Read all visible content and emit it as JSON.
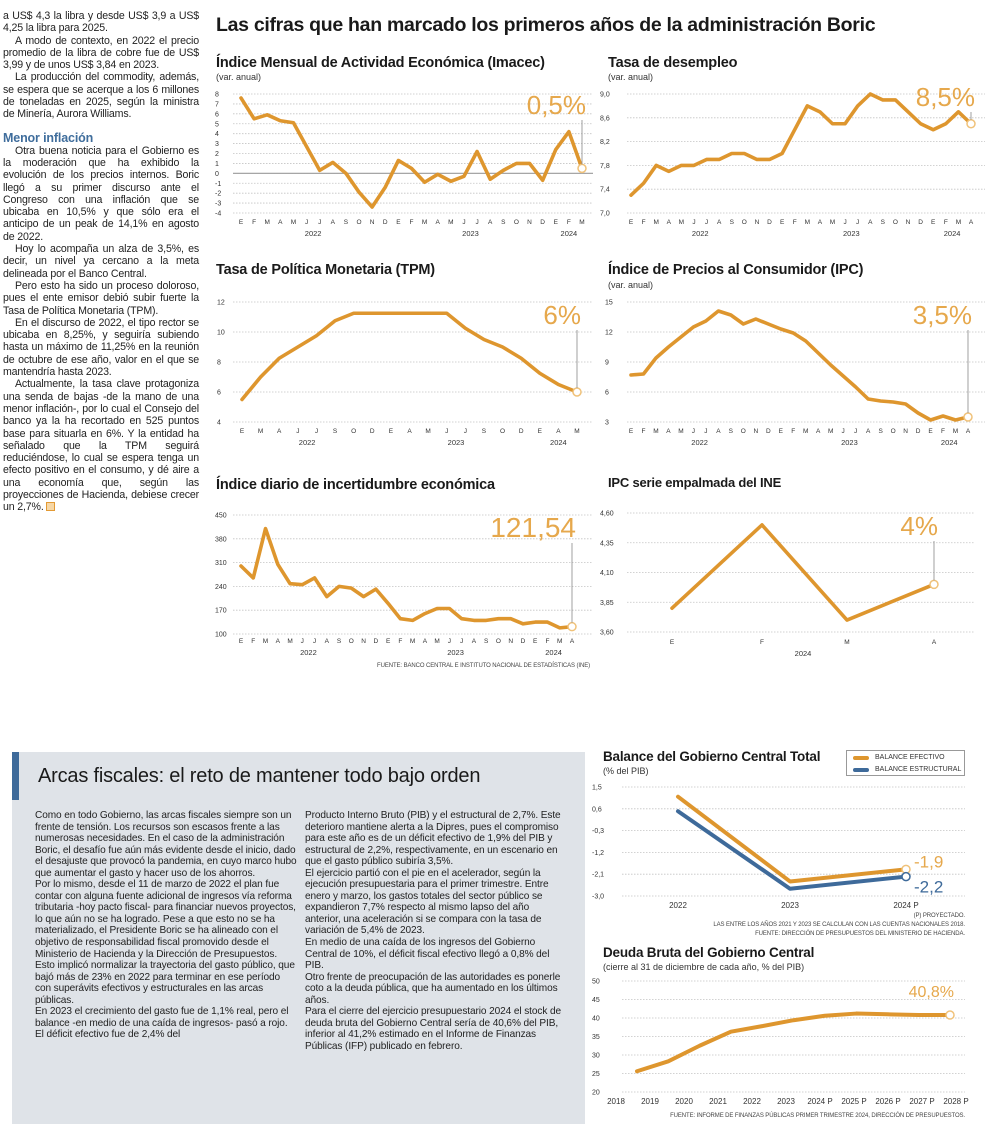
{
  "left_column": {
    "p1": "a US$ 4,3 la libra y desde US$ 3,9 a US$ 4,25 la libra para 2025.",
    "p2": "A modo de contexto, en 2022 el precio promedio de la libra de cobre fue de US$ 3,99 y de unos US$ 3,84 en 2023.",
    "p3": "La producción del commodity, además, se espera que se acerque a los 6 millones de toneladas en 2025, según la ministra de Minería, Aurora Williams.",
    "heading": "Menor inflación",
    "p4": "Otra buena noticia para el Gobierno es la moderación que ha exhibido la evolución de los precios internos. Boric llegó a su primer discurso ante el Congreso con una inflación que se ubicaba en 10,5% y que sólo era el anticipo de un peak de 14,1% en agosto de 2022.",
    "p5": "Hoy lo acompaña un alza de 3,5%, es decir, un nivel ya cercano a la meta delineada por el Banco Central.",
    "p6": "Pero esto ha sido un proceso doloroso, pues el ente emisor debió subir fuerte la Tasa de Política Monetaria (TPM).",
    "p7": "En el discurso de 2022, el tipo rector se ubicaba en 8,25%, y seguiría subiendo hasta un máximo de 11,25% en la reunión de octubre de ese año, valor en el que se mantendría hasta 2023.",
    "p8": "Actualmente, la tasa clave protagoniza una senda de bajas -de la mano de una menor inflación-, por lo cual el Consejo del banco ya la ha recortado en 525 puntos base para situarla en 6%. Y la entidad ha señalado que la TPM seguirá reduciéndose, lo cual se espera tenga un efecto positivo en el consumo, y dé aire a una economía que, según las proyecciones de Hacienda, debiese crecer un 2,7%."
  },
  "headline": "Las cifras que han marcado los primeros años de la administración Boric",
  "source_top": "FUENTE: BANCO CENTRAL E INSTITUTO NACIONAL DE ESTADÍSTICAS (INE)",
  "fiscal_box": {
    "title": "Arcas fiscales: el reto de mantener todo bajo orden",
    "col1": [
      "Como en todo Gobierno, las arcas fiscales siempre son un frente de tensión. Los recursos son escasos frente a las numerosas necesidades. En el caso de la administración Boric, el desafío fue aún más evidente desde el inicio, dado el desajuste que provocó la pandemia, en cuyo marco hubo que aumentar el gasto y hacer uso de los ahorros.",
      "Por lo mismo, desde el 11 de marzo de 2022 el plan fue contar con alguna fuente adicional de ingresos vía reforma tributaria -hoy pacto fiscal- para financiar nuevos proyectos, lo que aún no se ha logrado. Pese a que esto no se ha materializado, el Presidente Boric se ha alineado con el objetivo de responsabilidad fiscal promovido desde el Ministerio de Hacienda y la Dirección de Presupuestos. Esto implicó normalizar la trayectoria del gasto público, que bajó más de 23% en 2022 para terminar en ese período con superávits efectivos y estructurales en las arcas públicas.",
      "En 2023 el crecimiento del gasto fue de 1,1% real, pero el balance -en medio de una caída de ingresos- pasó a rojo. El déficit efectivo fue de 2,4% del"
    ],
    "col2": [
      "Producto Interno Bruto (PIB) y el estructural de 2,7%. Este deterioro mantiene alerta a la Dipres, pues el compromiso para este año es de un déficit efectivo de 1,9% del PIB y estructural de 2,2%, respectivamente, en un escenario en que el gasto público subiría 3,5%.",
      "El ejercicio partió con el pie en el acelerador, según la ejecución presupuestaria para el primer trimestre. Entre enero y marzo, los gastos totales del sector público se expandieron 7,7% respecto al mismo lapso del año anterior, una aceleración si se compara con la tasa de variación de 5,4% de 2023.",
      "En medio de una caída de los ingresos del Gobierno Central de 10%, el déficit fiscal efectivo llegó a 0,8% del PIB.",
      "Otro frente de preocupación de las autoridades es ponerle coto a la deuda pública, que ha aumentado en los últimos años.",
      "Para el cierre del ejercicio presupuestario 2024 el stock de deuda bruta del Gobierno Central sería de 40,6% del PIB, inferior al 41,2% estimado en el Informe de Finanzas Públicas (IFP) publicado en febrero."
    ]
  },
  "colors": {
    "line": "#de962e",
    "callout": "#e6a84c",
    "structural": "#3e6a9a",
    "box_bg": "#dfe3e8",
    "accent_bar": "#3e6a9a",
    "heading": "#3f6d9c"
  },
  "chart_data": [
    {
      "type": "line",
      "title": "Índice Mensual de Actividad Económica (Imacec)",
      "subtitle": "(var. anual)",
      "ylim": [
        -4,
        8
      ],
      "y_ticks": [
        "8",
        "7",
        "6",
        "5",
        "4",
        "3",
        "2",
        "1",
        "0",
        "-1",
        "-2",
        "-3",
        "-4"
      ],
      "grid": true,
      "x": [
        "E",
        "F",
        "M",
        "A",
        "M",
        "J",
        "J",
        "A",
        "S",
        "O",
        "N",
        "D",
        "E",
        "F",
        "M",
        "A",
        "M",
        "J",
        "J",
        "A",
        "S",
        "O",
        "N",
        "D",
        "E",
        "F",
        "M"
      ],
      "x_groups": [
        {
          "label": "2022",
          "span": 12
        },
        {
          "label": "2023",
          "span": 12
        },
        {
          "label": "2024",
          "span": 3
        }
      ],
      "values": [
        7.6,
        5.5,
        5.9,
        5.3,
        5.1,
        2.7,
        0.3,
        1.1,
        0.0,
        -1.9,
        -3.4,
        -1.4,
        1.3,
        0.5,
        -0.9,
        -0.1,
        -0.8,
        -0.3,
        2.2,
        -0.6,
        0.3,
        1.0,
        1.0,
        -0.7,
        2.4,
        4.2,
        0.5
      ],
      "callout": "0,5%"
    },
    {
      "type": "line",
      "title": "Tasa de desempleo",
      "subtitle": "(var. anual)",
      "ylim": [
        7.0,
        9.0
      ],
      "y_ticks": [
        "9,0",
        "8,6",
        "8,2",
        "7,8",
        "7,4",
        "7,0"
      ],
      "grid": true,
      "x": [
        "E",
        "F",
        "M",
        "A",
        "M",
        "J",
        "J",
        "A",
        "S",
        "O",
        "N",
        "D",
        "E",
        "F",
        "M",
        "A",
        "M",
        "J",
        "J",
        "A",
        "S",
        "O",
        "N",
        "D",
        "E",
        "F",
        "M",
        "A"
      ],
      "x_groups": [
        {
          "label": "2022",
          "span": 12
        },
        {
          "label": "2023",
          "span": 12
        },
        {
          "label": "2024",
          "span": 4
        }
      ],
      "values": [
        7.3,
        7.5,
        7.8,
        7.7,
        7.8,
        7.8,
        7.9,
        7.9,
        8.0,
        8.0,
        7.9,
        7.9,
        8.0,
        8.4,
        8.8,
        8.7,
        8.5,
        8.5,
        8.8,
        9.0,
        8.9,
        8.9,
        8.7,
        8.5,
        8.4,
        8.5,
        8.7,
        8.5
      ],
      "callout": "8,5%"
    },
    {
      "type": "line",
      "title": "Tasa de Política Monetaria (TPM)",
      "subtitle": "",
      "ylim": [
        4,
        12
      ],
      "y_ticks": [
        "12",
        "10",
        "8",
        "6",
        "4"
      ],
      "grid": true,
      "x": [
        "E",
        "M",
        "A",
        "J",
        "J",
        "S",
        "O",
        "D",
        "E",
        "A",
        "M",
        "J",
        "J",
        "S",
        "O",
        "D",
        "E",
        "A",
        "M"
      ],
      "x_groups": [
        {
          "label": "2022",
          "span": 8
        },
        {
          "label": "2023",
          "span": 8
        },
        {
          "label": "2024",
          "span": 3
        }
      ],
      "values": [
        5.5,
        7.0,
        8.25,
        9.0,
        9.75,
        10.75,
        11.25,
        11.25,
        11.25,
        11.25,
        11.25,
        11.25,
        10.25,
        9.5,
        9.0,
        8.25,
        7.25,
        6.5,
        6.0
      ],
      "callout": "6%"
    },
    {
      "type": "line",
      "title": "Índice de Precios al Consumidor (IPC)",
      "subtitle": "(var. anual)",
      "ylim": [
        3,
        15
      ],
      "y_ticks": [
        "15",
        "12",
        "9",
        "6",
        "3"
      ],
      "grid": true,
      "x": [
        "E",
        "F",
        "M",
        "A",
        "M",
        "J",
        "J",
        "A",
        "S",
        "O",
        "N",
        "D",
        "E",
        "F",
        "M",
        "A",
        "M",
        "J",
        "J",
        "A",
        "S",
        "O",
        "N",
        "D",
        "E",
        "F",
        "M",
        "A"
      ],
      "x_groups": [
        {
          "label": "2022",
          "span": 12
        },
        {
          "label": "2023",
          "span": 12
        },
        {
          "label": "2024",
          "span": 4
        }
      ],
      "values": [
        7.7,
        7.8,
        9.4,
        10.5,
        11.5,
        12.5,
        13.1,
        14.1,
        13.7,
        12.8,
        13.3,
        12.8,
        12.3,
        11.9,
        11.1,
        9.9,
        8.7,
        7.6,
        6.5,
        5.3,
        5.1,
        5.0,
        4.8,
        3.9,
        3.2,
        3.6,
        3.2,
        3.5
      ],
      "callout": "3,5%"
    },
    {
      "type": "line",
      "title": "Índice diario de incertidumbre económica",
      "subtitle": "",
      "ylim": [
        100,
        450
      ],
      "y_ticks": [
        "450",
        "380",
        "310",
        "240",
        "170",
        "100"
      ],
      "grid": true,
      "x": [
        "E",
        "F",
        "M",
        "A",
        "M",
        "J",
        "J",
        "A",
        "S",
        "O",
        "N",
        "D",
        "E",
        "F",
        "M",
        "A",
        "M",
        "J",
        "J",
        "A",
        "S",
        "O",
        "N",
        "D",
        "E",
        "F",
        "M",
        "A"
      ],
      "x_groups": [
        {
          "label": "2022",
          "span": 12
        },
        {
          "label": "2023",
          "span": 12
        },
        {
          "label": "2024",
          "span": 4
        }
      ],
      "values": [
        300,
        265,
        410,
        305,
        248,
        245,
        265,
        210,
        240,
        235,
        210,
        232,
        190,
        145,
        140,
        160,
        175,
        175,
        145,
        140,
        140,
        145,
        145,
        130,
        135,
        135,
        118,
        121.54
      ],
      "callout": "121,54"
    },
    {
      "type": "line",
      "title": "IPC serie empalmada del INE",
      "subtitle": "",
      "ylim": [
        3.6,
        4.6
      ],
      "y_ticks": [
        "4,60",
        "4,35",
        "4,10",
        "3,85",
        "3,60"
      ],
      "grid": true,
      "x": [
        "E",
        "F",
        "M",
        "A"
      ],
      "x_groups": [
        {
          "label": "2024",
          "span": 4
        }
      ],
      "values": [
        3.8,
        4.5,
        3.7,
        4.0
      ],
      "callout": "4%"
    },
    {
      "type": "line",
      "title": "Balance del Gobierno Central Total",
      "subtitle": "(% del PIB)",
      "ylim": [
        -3.0,
        1.5
      ],
      "y_ticks": [
        "1,5",
        "0,6",
        "-0,3",
        "-1,2",
        "-2,1",
        "-3,0"
      ],
      "grid": true,
      "x": [
        "2022",
        "2023",
        "2024 P"
      ],
      "legend": "top-right",
      "series": [
        {
          "name": "BALANCE EFECTIVO",
          "color": "#de962e",
          "values": [
            1.1,
            -2.4,
            -1.9
          ],
          "callout": "-1,9"
        },
        {
          "name": "BALANCE ESTRUCTURAL",
          "color": "#3e6a9a",
          "values": [
            0.5,
            -2.7,
            -2.2
          ],
          "callout": "-2,2"
        }
      ],
      "notes": [
        "(P) PROYECTADO.",
        "LAS ENTRE LOS AÑOS 2021 Y 2023 SE CALCULAN  CON LAS CUENTAS NACIONALES 2018.",
        "FUENTE: DIRECCIÓN DE PRESUPUESTOS DEL MINISTERIO DE HACIENDA."
      ]
    },
    {
      "type": "line",
      "title": "Deuda Bruta del Gobierno Central",
      "subtitle": "(cierre al 31 de diciembre de cada año, % del PIB)",
      "ylim": [
        20,
        50
      ],
      "y_ticks": [
        "50",
        "45",
        "40",
        "35",
        "30",
        "25",
        "20"
      ],
      "grid": true,
      "x": [
        "2018",
        "2019",
        "2020",
        "2021",
        "2022",
        "2023",
        "2024 P",
        "2025 P",
        "2026 P",
        "2027 P",
        "2028 P"
      ],
      "values": [
        25.6,
        28.3,
        32.5,
        36.3,
        37.8,
        39.4,
        40.6,
        41.2,
        41.0,
        40.8,
        40.8
      ],
      "callout": "40,8%",
      "source": "FUENTE: INFORME DE FINANZAS PÚBLICAS PRIMER TRIMESTRE 2024, DIRECCIÓN DE PRESUPUESTOS."
    }
  ]
}
